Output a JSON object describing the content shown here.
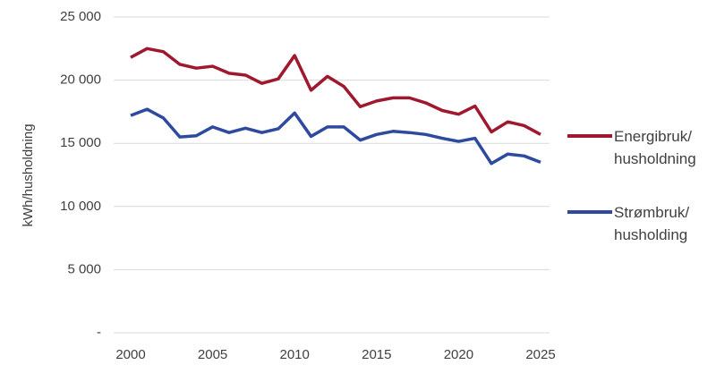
{
  "chart_data": {
    "type": "line",
    "y_label": "kWh/husholdning",
    "x": [
      2000,
      2001,
      2002,
      2003,
      2004,
      2005,
      2006,
      2007,
      2008,
      2009,
      2010,
      2011,
      2012,
      2013,
      2014,
      2015,
      2016,
      2017,
      2018,
      2019,
      2020,
      2021,
      2022,
      2023,
      2024,
      2025
    ],
    "series": [
      {
        "name": "Energibruk/ husholdning",
        "color": "#a0182e",
        "values": [
          21800,
          22500,
          22250,
          21250,
          20950,
          21100,
          20550,
          20400,
          19750,
          20100,
          21950,
          19200,
          20300,
          19500,
          17900,
          18350,
          18600,
          18600,
          18200,
          17600,
          17300,
          17950,
          15900,
          16700,
          16400,
          15700
        ]
      },
      {
        "name": "Strømbruk/ husholding",
        "color": "#2e4a9e",
        "values": [
          17200,
          17700,
          17000,
          15500,
          15600,
          16300,
          15850,
          16200,
          15850,
          16150,
          17400,
          15550,
          16300,
          16300,
          15250,
          15700,
          15950,
          15850,
          15700,
          15400,
          15150,
          15400,
          13400,
          14150,
          14000,
          13500
        ]
      }
    ],
    "xlim": [
      2000,
      2025
    ],
    "xticks": [
      2000,
      2005,
      2010,
      2015,
      2020,
      2025
    ],
    "ylim": [
      0,
      25000
    ],
    "yticks": [
      {
        "value": 0,
        "label": "-"
      },
      {
        "value": 5000,
        "label": "5 000"
      },
      {
        "value": 10000,
        "label": "10 000"
      },
      {
        "value": 15000,
        "label": "15 000"
      },
      {
        "value": 20000,
        "label": "20 000"
      },
      {
        "value": 25000,
        "label": "25 000"
      }
    ],
    "grid": true,
    "legend": "right"
  }
}
